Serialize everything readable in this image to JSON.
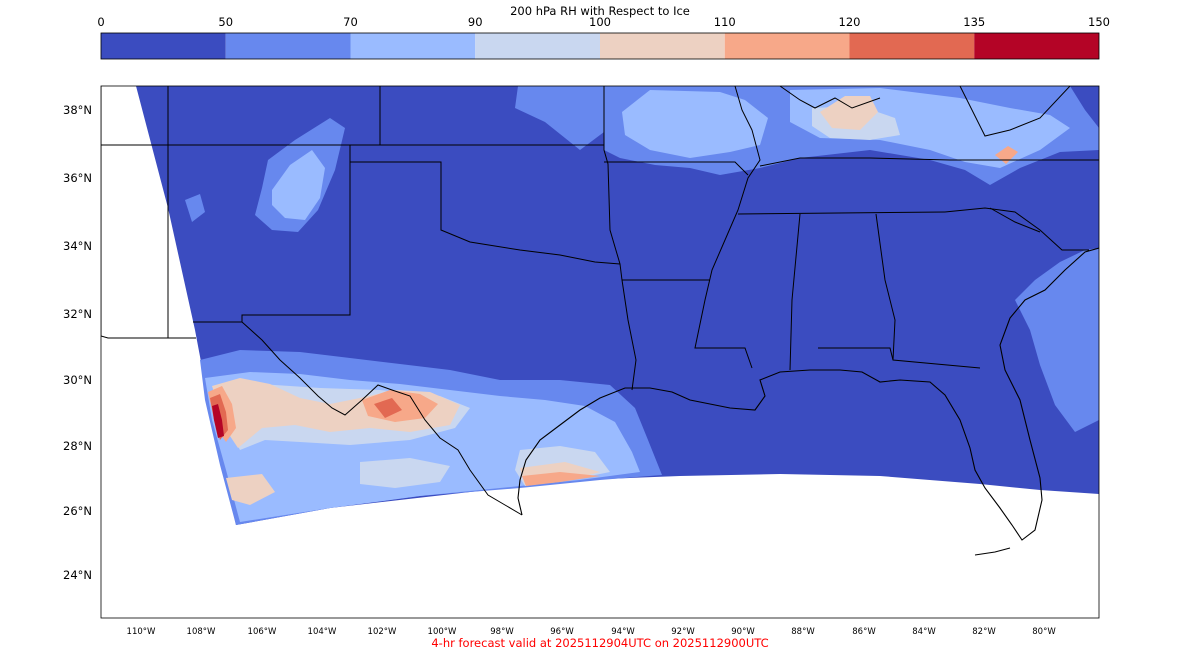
{
  "colorbar": {
    "title": "200 hPa RH with Respect to Ice",
    "ticks": [
      "0",
      "50",
      "70",
      "90",
      "100",
      "110",
      "120",
      "135",
      "150"
    ],
    "colors": [
      "#3b4cc0",
      "#6788ee",
      "#9abbff",
      "#c9d7f0",
      "#edd1c2",
      "#f7a889",
      "#e26952",
      "#b40426"
    ]
  },
  "map": {
    "lat_labels": [
      "38°N",
      "36°N",
      "34°N",
      "32°N",
      "30°N",
      "28°N",
      "26°N",
      "24°N"
    ],
    "lon_labels": [
      "110°W",
      "108°W",
      "106°W",
      "104°W",
      "102°W",
      "100°W",
      "98°W",
      "96°W",
      "94°W",
      "92°W",
      "90°W",
      "88°W",
      "86°W",
      "84°W",
      "82°W",
      "80°W"
    ],
    "background_color": "#3b4cc0"
  },
  "caption": "4-hr forecast valid at 2025112904UTC on 2025112900UTC"
}
